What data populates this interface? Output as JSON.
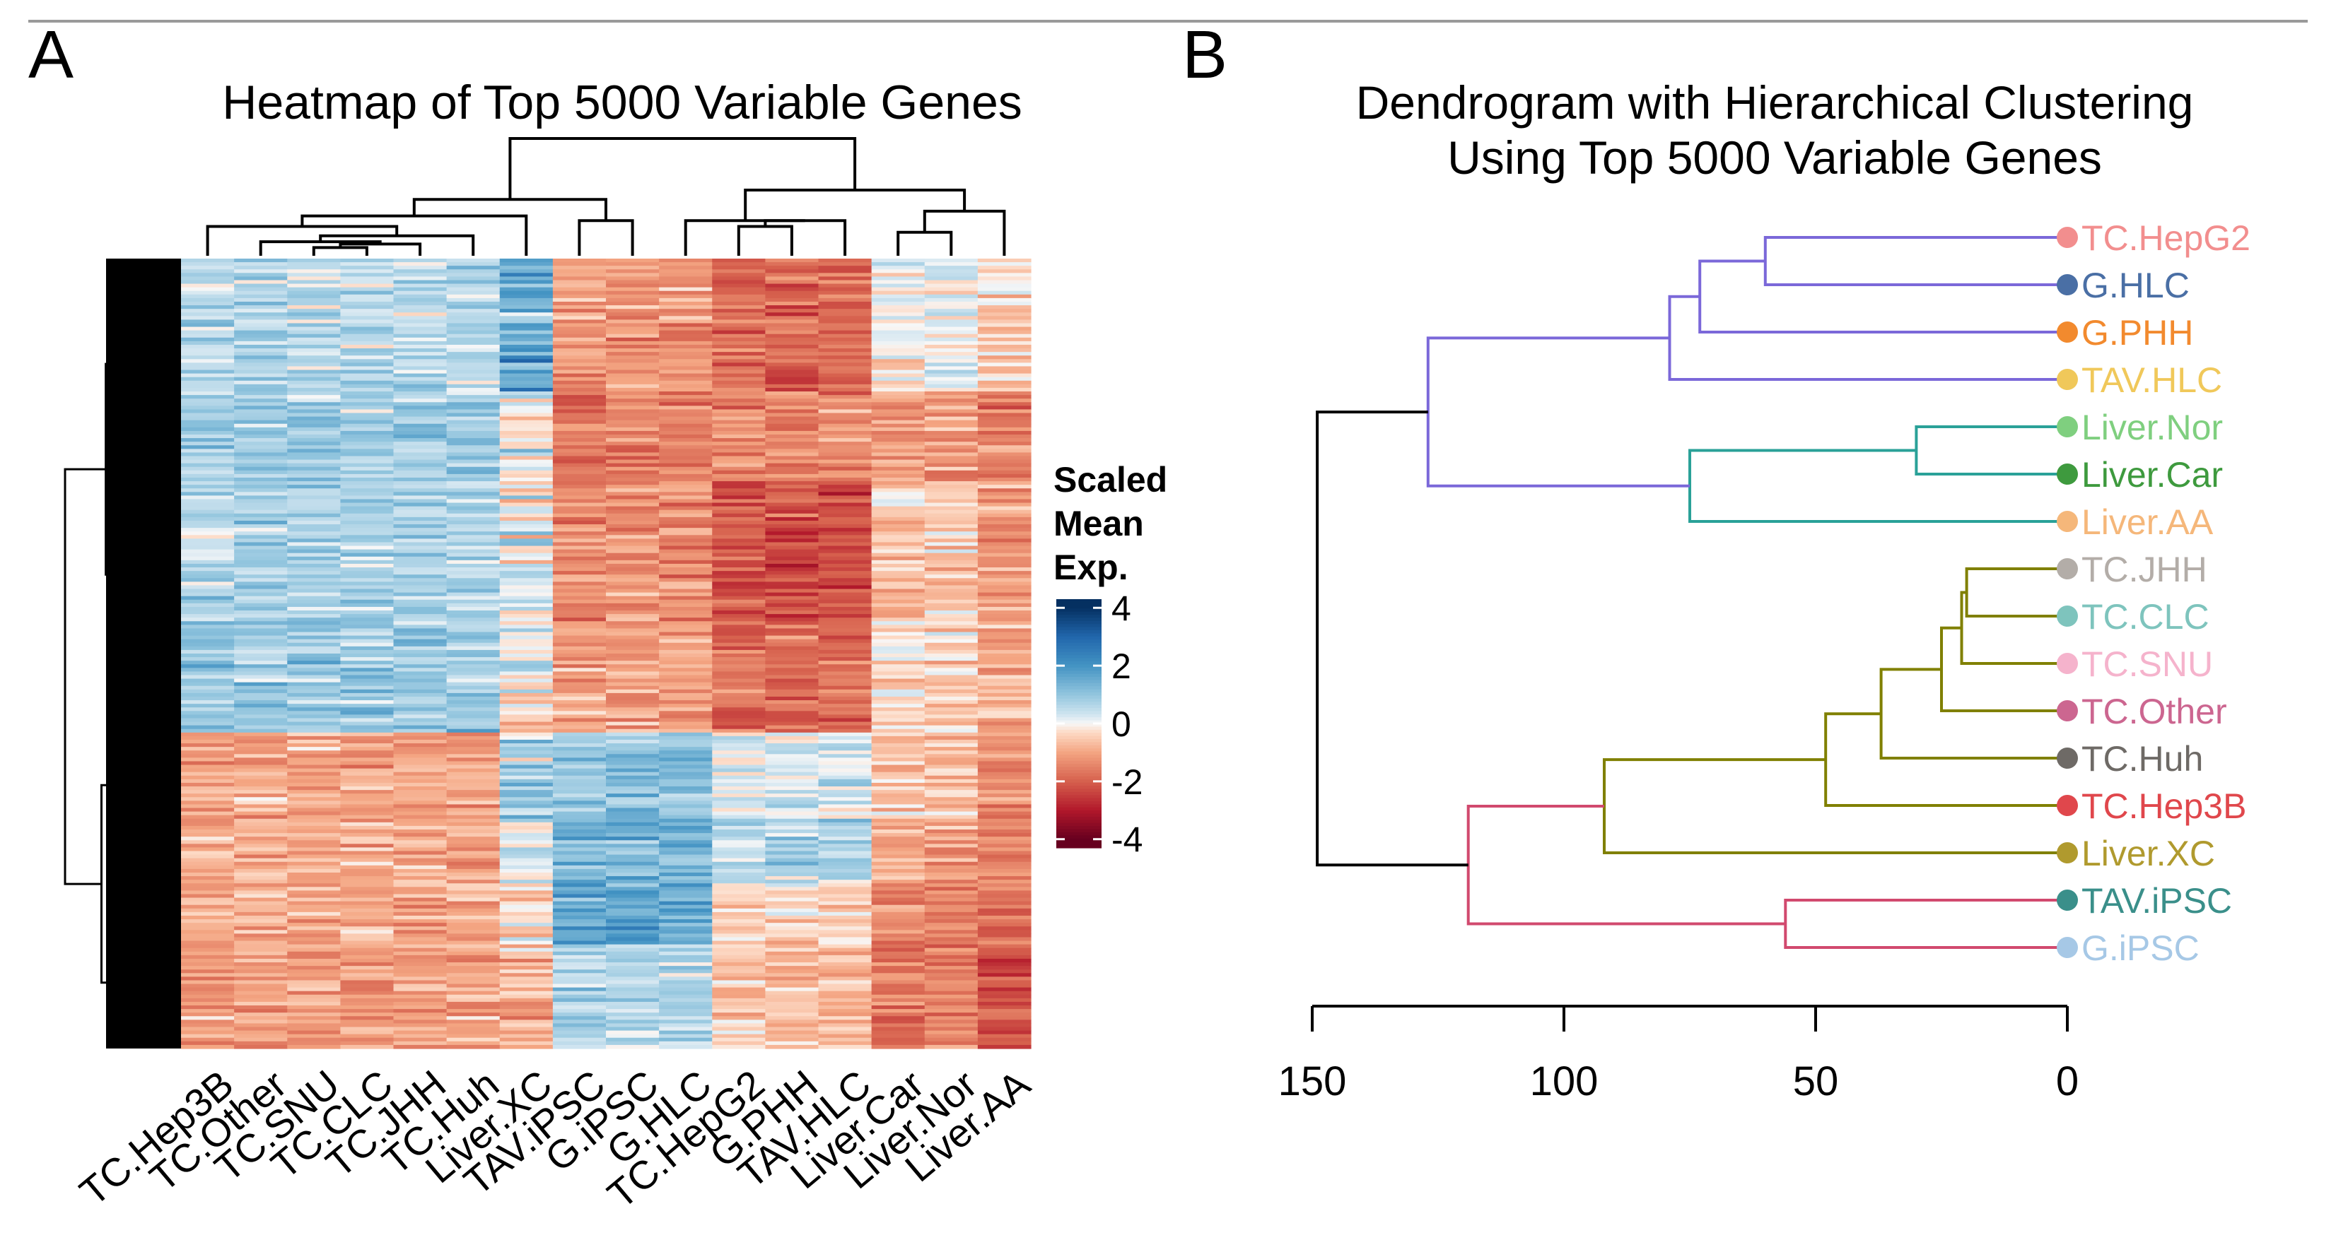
{
  "panels": {
    "a": {
      "letter": "A"
    },
    "b": {
      "letter": "B"
    }
  },
  "legend": {
    "title_lines": [
      "Scaled",
      "Mean",
      "Exp."
    ],
    "ticks": [
      4,
      2,
      0,
      -2,
      -4
    ],
    "low_color": "#67001f",
    "mid_color": "#f7f7f7",
    "high_color": "#053061"
  },
  "chart_data": [
    {
      "type": "heatmap",
      "title": "Heatmap of Top 5000 Variable Genes",
      "columns": [
        "TC.Hep3B",
        "TC.Other",
        "TC.SNU",
        "TC.CLC",
        "TC.JHH",
        "TC.Huh",
        "Liver.XC",
        "TAV.iPSC",
        "G.iPSC",
        "G.HLC",
        "TC.HepG2",
        "G.PHH",
        "TAV.HLC",
        "Liver.Car",
        "Liver.Nor",
        "Liver.AA"
      ],
      "n_rows": 5000,
      "value_range": [
        -4,
        4
      ],
      "row_dendrogram": true,
      "column_dendrogram": true
    },
    {
      "type": "dendrogram",
      "title_lines": [
        "Dendrogram with Hierarchical Clustering",
        "Using Top 5000 Variable Genes"
      ],
      "leaves": [
        {
          "label": "TC.HepG2",
          "color": "#f28e8e"
        },
        {
          "label": "G.HLC",
          "color": "#4a6fa5"
        },
        {
          "label": "G.PHH",
          "color": "#f28a2e"
        },
        {
          "label": "TAV.HLC",
          "color": "#f0c85a"
        },
        {
          "label": "Liver.Nor",
          "color": "#7fcf7f"
        },
        {
          "label": "Liver.Car",
          "color": "#3e9a3e"
        },
        {
          "label": "Liver.AA",
          "color": "#f5b77a"
        },
        {
          "label": "TC.JHH",
          "color": "#b3ada8"
        },
        {
          "label": "TC.CLC",
          "color": "#7ec4bd"
        },
        {
          "label": "TC.SNU",
          "color": "#f5b3cc"
        },
        {
          "label": "TC.Other",
          "color": "#cc6690"
        },
        {
          "label": "TC.Huh",
          "color": "#6e6a66"
        },
        {
          "label": "TC.Hep3B",
          "color": "#e0474c"
        },
        {
          "label": "Liver.XC",
          "color": "#b09a2e"
        },
        {
          "label": "TAV.iPSC",
          "color": "#3a8f8a"
        },
        {
          "label": "G.iPSC",
          "color": "#a6c8e6"
        }
      ],
      "merges": [
        {
          "a": 0,
          "b": 1,
          "height": 60,
          "color": "#7b68d9"
        },
        {
          "a": "m0",
          "b": 2,
          "height": 73,
          "color": "#7b68d9"
        },
        {
          "a": "m1",
          "b": 3,
          "height": 79,
          "color": "#7b68d9"
        },
        {
          "a": 4,
          "b": 5,
          "height": 30,
          "color": "#2aa198"
        },
        {
          "a": "m3",
          "b": 6,
          "height": 75,
          "color": "#2aa198"
        },
        {
          "a": "m2",
          "b": "m4",
          "height": 127,
          "color": "#7b68d9"
        },
        {
          "a": 7,
          "b": 8,
          "height": 20,
          "color": "#808000"
        },
        {
          "a": "m6",
          "b": 9,
          "height": 21,
          "color": "#808000"
        },
        {
          "a": "m7",
          "b": 10,
          "height": 25,
          "color": "#808000"
        },
        {
          "a": "m8",
          "b": 11,
          "height": 37,
          "color": "#808000"
        },
        {
          "a": "m9",
          "b": 12,
          "height": 48,
          "color": "#808000"
        },
        {
          "a": "m10",
          "b": 13,
          "height": 92,
          "color": "#808000"
        },
        {
          "a": 14,
          "b": 15,
          "height": 56,
          "color": "#d1496e"
        },
        {
          "a": "m11",
          "b": "m12",
          "height": 119,
          "color": "#d1496e"
        },
        {
          "a": "m5",
          "b": "m13",
          "height": 149,
          "color": "#000000"
        }
      ],
      "axis": {
        "range": [
          150,
          0
        ],
        "ticks": [
          150,
          100,
          50,
          0
        ]
      }
    }
  ]
}
